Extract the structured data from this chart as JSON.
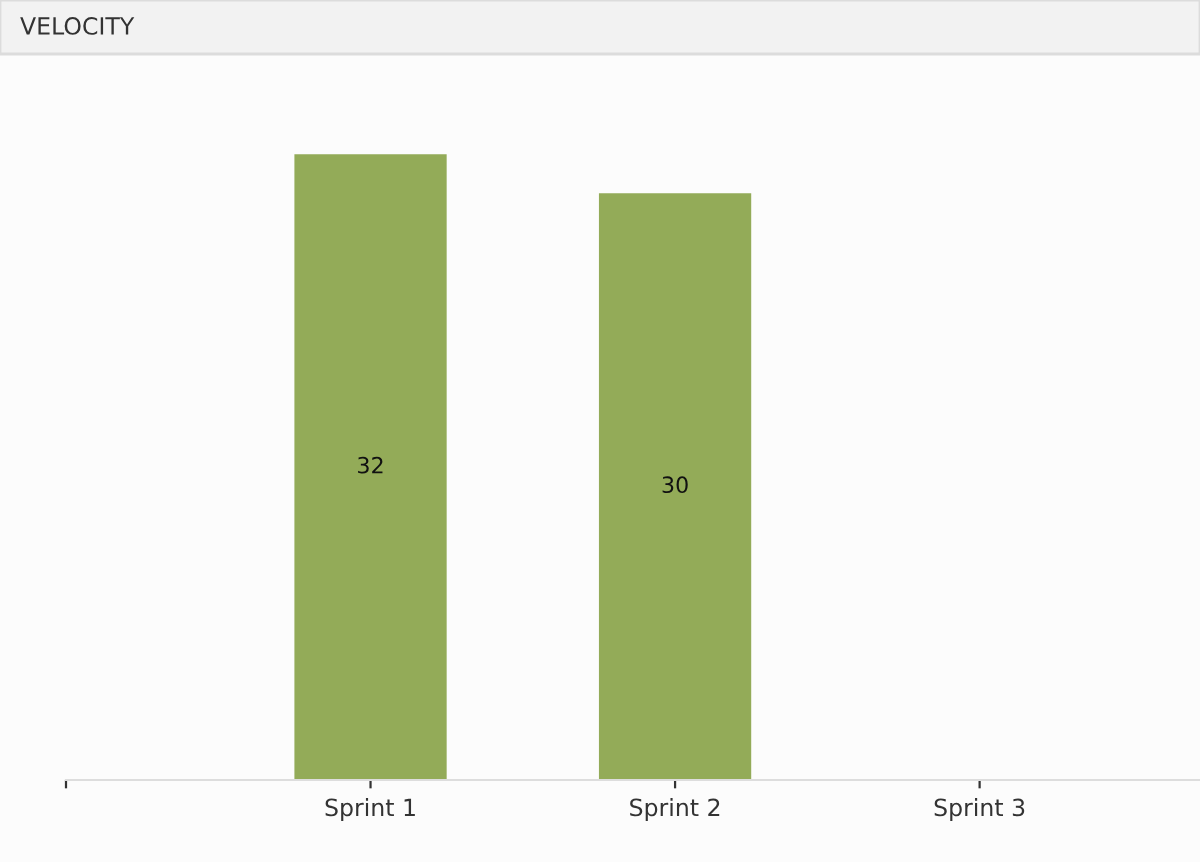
{
  "chart_data": {
    "type": "bar",
    "title": "VELOCITY",
    "categories": [
      null,
      "Sprint 1",
      "Sprint 2",
      "Sprint 3"
    ],
    "values": [
      null,
      32,
      30,
      null
    ],
    "color": "#93ab58",
    "data_labels": true,
    "grid": false,
    "legend": false
  }
}
